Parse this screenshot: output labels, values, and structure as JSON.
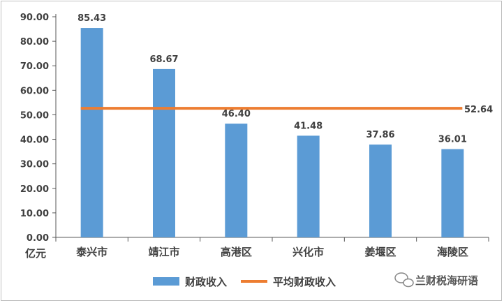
{
  "chart_data": {
    "type": "bar",
    "categories": [
      "泰兴市",
      "靖江市",
      "高港区",
      "兴化市",
      "姜堰区",
      "海陵区"
    ],
    "series": [
      {
        "name": "财政收入",
        "type": "bar",
        "values": [
          85.43,
          68.67,
          46.4,
          41.48,
          37.86,
          36.01
        ],
        "labels": [
          "85.43",
          "68.67",
          "46.40",
          "41.48",
          "37.86",
          "36.01"
        ],
        "color": "#5b9bd5"
      },
      {
        "name": "平均财政收入",
        "type": "line",
        "value": 52.64,
        "label": "52.64",
        "color": "#ed7d31"
      }
    ],
    "y_ticks": [
      "0.00",
      "10.00",
      "20.00",
      "30.00",
      "40.00",
      "50.00",
      "60.00",
      "70.00",
      "80.00",
      "90.00"
    ],
    "ylim": [
      0,
      90
    ],
    "ylabel": "亿元",
    "legend_position": "bottom",
    "grid": false
  },
  "watermark": {
    "text": "兰财税海研语",
    "icon": "wechat-icon"
  }
}
